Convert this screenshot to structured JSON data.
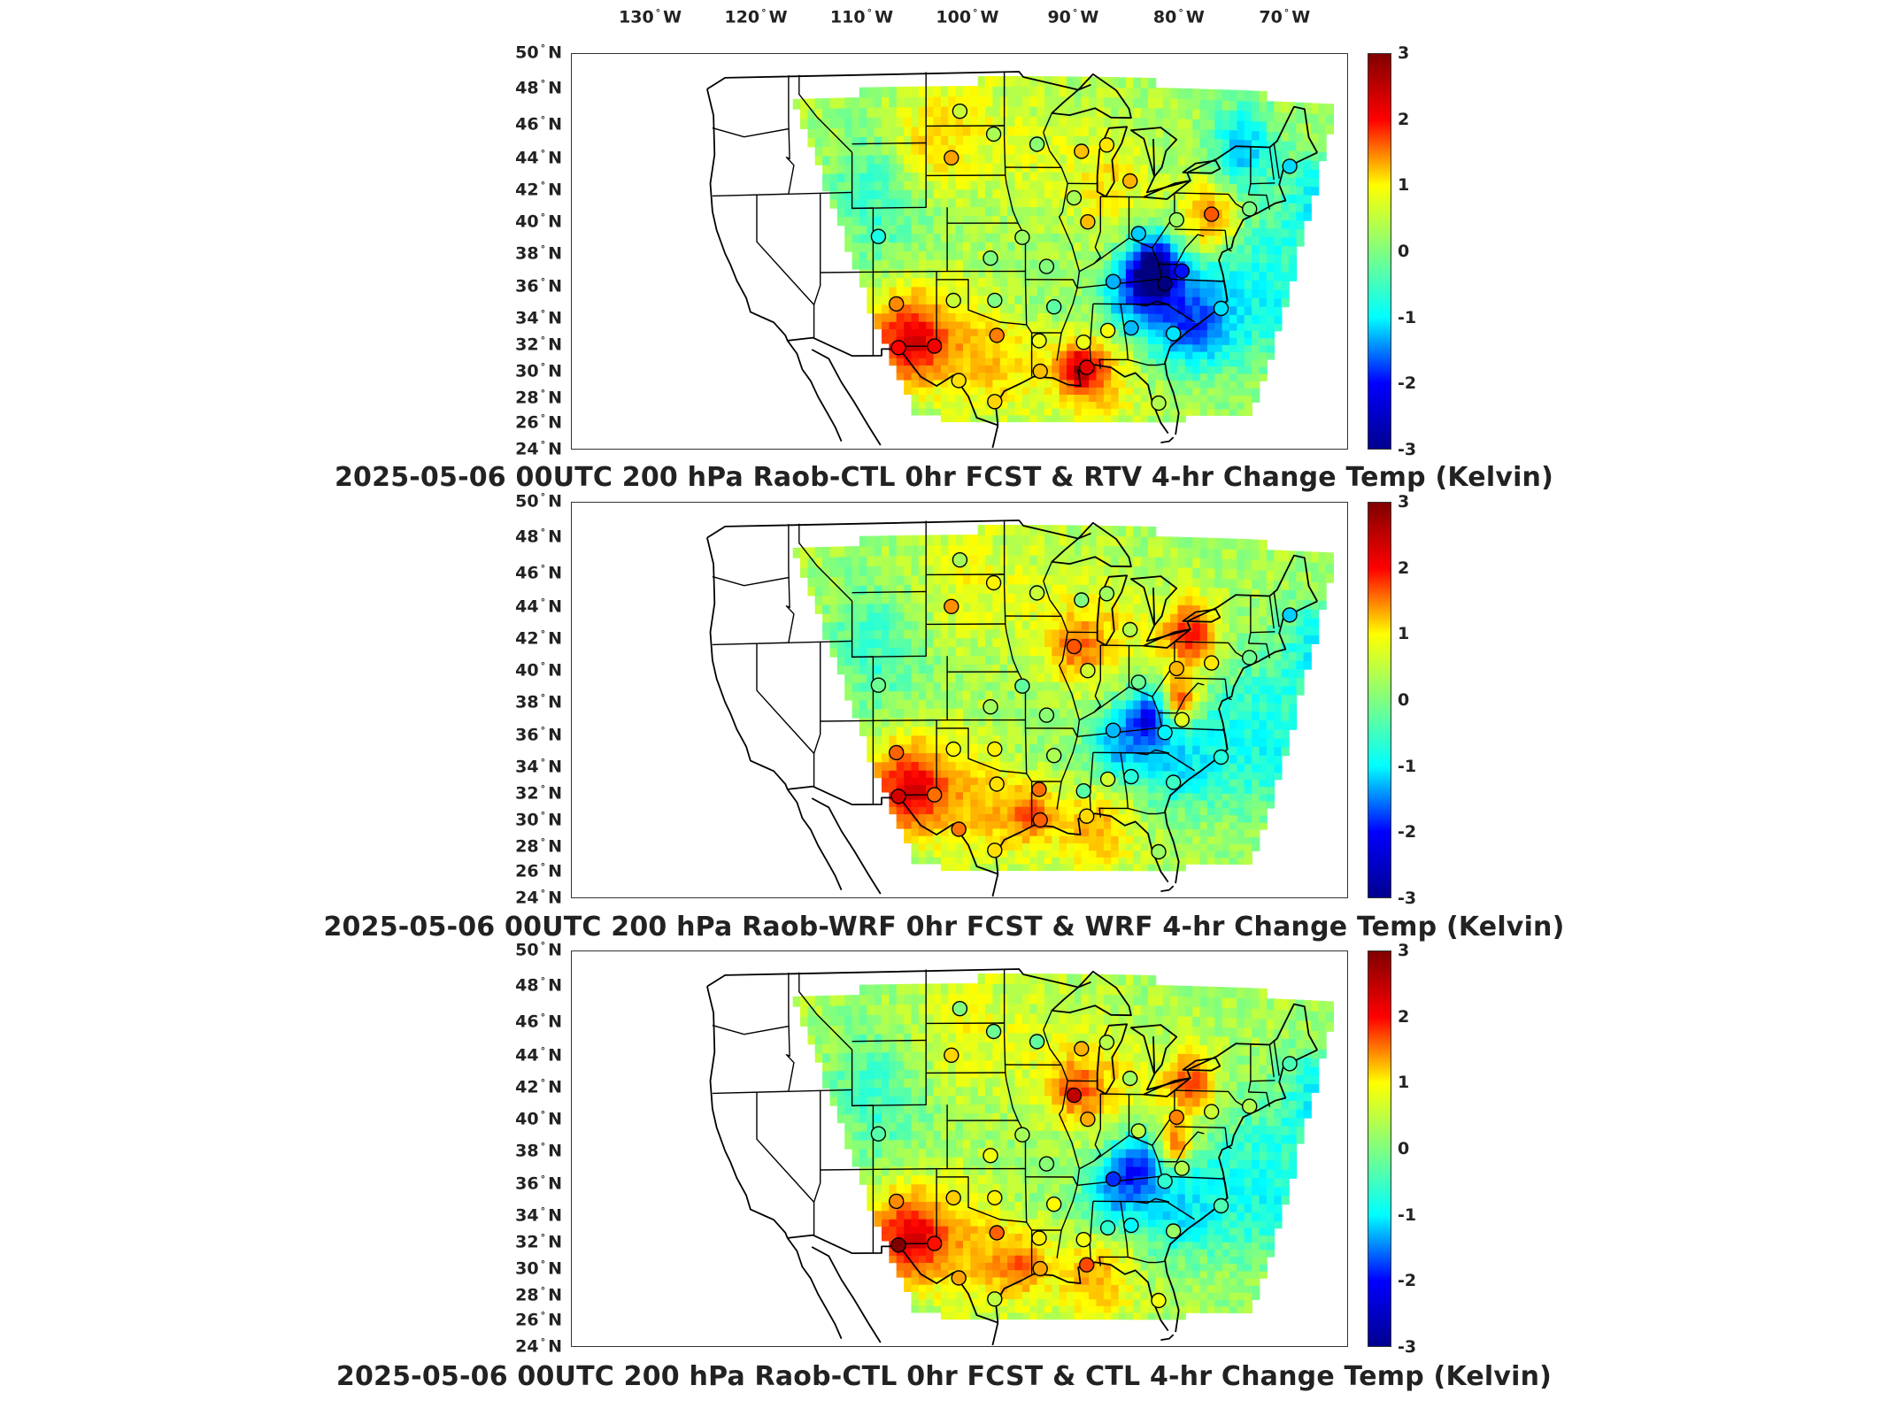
{
  "lon_axis": {
    "labels": [
      {
        "value": "130",
        "hemi": "W"
      },
      {
        "value": "120",
        "hemi": "W"
      },
      {
        "value": "110",
        "hemi": "W"
      },
      {
        "value": "100",
        "hemi": "W"
      },
      {
        "value": "90",
        "hemi": "W"
      },
      {
        "value": "80",
        "hemi": "W"
      },
      {
        "value": "70",
        "hemi": "W"
      }
    ]
  },
  "lat_axis": {
    "labels": [
      {
        "value": "50",
        "hemi": "N"
      },
      {
        "value": "48",
        "hemi": "N"
      },
      {
        "value": "46",
        "hemi": "N"
      },
      {
        "value": "44",
        "hemi": "N"
      },
      {
        "value": "42",
        "hemi": "N"
      },
      {
        "value": "40",
        "hemi": "N"
      },
      {
        "value": "38",
        "hemi": "N"
      },
      {
        "value": "36",
        "hemi": "N"
      },
      {
        "value": "34",
        "hemi": "N"
      },
      {
        "value": "32",
        "hemi": "N"
      },
      {
        "value": "30",
        "hemi": "N"
      },
      {
        "value": "28",
        "hemi": "N"
      },
      {
        "value": "26",
        "hemi": "N"
      },
      {
        "value": "24",
        "hemi": "N"
      }
    ]
  },
  "colorbar": {
    "min": -3,
    "max": 3,
    "ticks": [
      "3",
      "2",
      "1",
      "0",
      "-1",
      "-2",
      "-3"
    ],
    "colormap": "jet",
    "colors": [
      "#00008f",
      "#0000ff",
      "#00ffff",
      "#80ff80",
      "#ffff00",
      "#ff0000",
      "#800000"
    ]
  },
  "panels": [
    {
      "title": "2025-05-06 00UTC 200 hPa Raob-CTL 0hr FCST & RTV 4-hr Change Temp (Kelvin)",
      "field_variant": "rtv"
    },
    {
      "title": "2025-05-06 00UTC 200 hPa Raob-WRF 0hr FCST & WRF 4-hr Change Temp (Kelvin)",
      "field_variant": "wrf"
    },
    {
      "title": "2025-05-06 00UTC 200 hPa Raob-CTL 0hr FCST & CTL 4-hr Change Temp (Kelvin)",
      "field_variant": "ctl"
    }
  ],
  "stations": [
    {
      "lon": -100.8,
      "lat": 46.8
    },
    {
      "lon": -97.6,
      "lat": 45.5
    },
    {
      "lon": -93.5,
      "lat": 44.9
    },
    {
      "lon": -89.3,
      "lat": 44.5
    },
    {
      "lon": -86.9,
      "lat": 44.9
    },
    {
      "lon": -84.7,
      "lat": 42.7
    },
    {
      "lon": -101.6,
      "lat": 44.1
    },
    {
      "lon": -90.0,
      "lat": 41.6
    },
    {
      "lon": -88.7,
      "lat": 40.1
    },
    {
      "lon": -83.9,
      "lat": 39.4
    },
    {
      "lon": -80.3,
      "lat": 40.3
    },
    {
      "lon": -77.0,
      "lat": 40.7
    },
    {
      "lon": -73.4,
      "lat": 41.1
    },
    {
      "lon": -69.6,
      "lat": 43.9
    },
    {
      "lon": -108.5,
      "lat": 39.2
    },
    {
      "lon": -97.9,
      "lat": 37.8
    },
    {
      "lon": -94.9,
      "lat": 39.1
    },
    {
      "lon": -92.6,
      "lat": 37.3
    },
    {
      "lon": -86.3,
      "lat": 36.4
    },
    {
      "lon": -81.4,
      "lat": 36.3
    },
    {
      "lon": -79.8,
      "lat": 37.1
    },
    {
      "lon": -76.1,
      "lat": 34.8
    },
    {
      "lon": -106.8,
      "lat": 35.0
    },
    {
      "lon": -101.4,
      "lat": 35.2
    },
    {
      "lon": -97.5,
      "lat": 35.2
    },
    {
      "lon": -91.9,
      "lat": 34.8
    },
    {
      "lon": -86.8,
      "lat": 33.2
    },
    {
      "lon": -84.6,
      "lat": 33.4
    },
    {
      "lon": -80.6,
      "lat": 33.0
    },
    {
      "lon": -106.6,
      "lat": 31.9
    },
    {
      "lon": -103.2,
      "lat": 32.0
    },
    {
      "lon": -97.3,
      "lat": 32.8
    },
    {
      "lon": -93.3,
      "lat": 32.4
    },
    {
      "lon": -89.1,
      "lat": 32.3
    },
    {
      "lon": -100.9,
      "lat": 29.4
    },
    {
      "lon": -97.5,
      "lat": 27.8
    },
    {
      "lon": -93.2,
      "lat": 30.1
    },
    {
      "lon": -88.8,
      "lat": 30.4
    },
    {
      "lon": -82.0,
      "lat": 27.7
    }
  ]
}
